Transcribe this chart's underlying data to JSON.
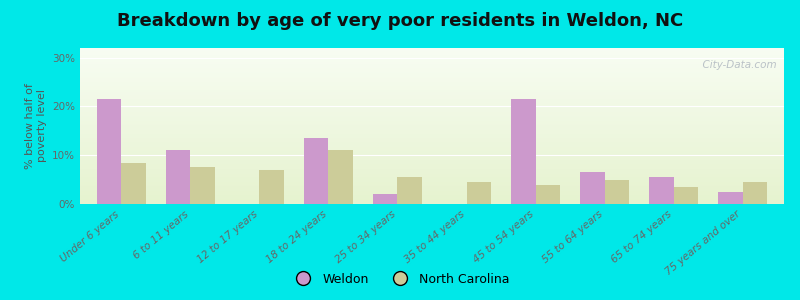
{
  "title": "Breakdown by age of very poor residents in Weldon, NC",
  "ylabel": "% below half of\npoverty level",
  "categories": [
    "Under 6 years",
    "6 to 11 years",
    "12 to 17 years",
    "18 to 24 years",
    "25 to 34 years",
    "35 to 44 years",
    "45 to 54 years",
    "55 to 64 years",
    "65 to 74 years",
    "75 years and over"
  ],
  "weldon": [
    21.5,
    11.0,
    0.0,
    13.5,
    2.0,
    0.0,
    21.5,
    6.5,
    5.5,
    2.5
  ],
  "nc": [
    8.5,
    7.5,
    7.0,
    11.0,
    5.5,
    4.5,
    4.0,
    5.0,
    3.5,
    4.5
  ],
  "weldon_color": "#cc99cc",
  "nc_color": "#cccc99",
  "background_outer": "#00e8e8",
  "ylim": [
    0,
    32
  ],
  "yticks": [
    0,
    10,
    20,
    30
  ],
  "ytick_labels": [
    "0%",
    "10%",
    "20%",
    "30%"
  ],
  "bar_width": 0.35,
  "title_fontsize": 13,
  "axis_label_fontsize": 8,
  "tick_fontsize": 7.5,
  "legend_fontsize": 9,
  "watermark": "  City-Data.com"
}
